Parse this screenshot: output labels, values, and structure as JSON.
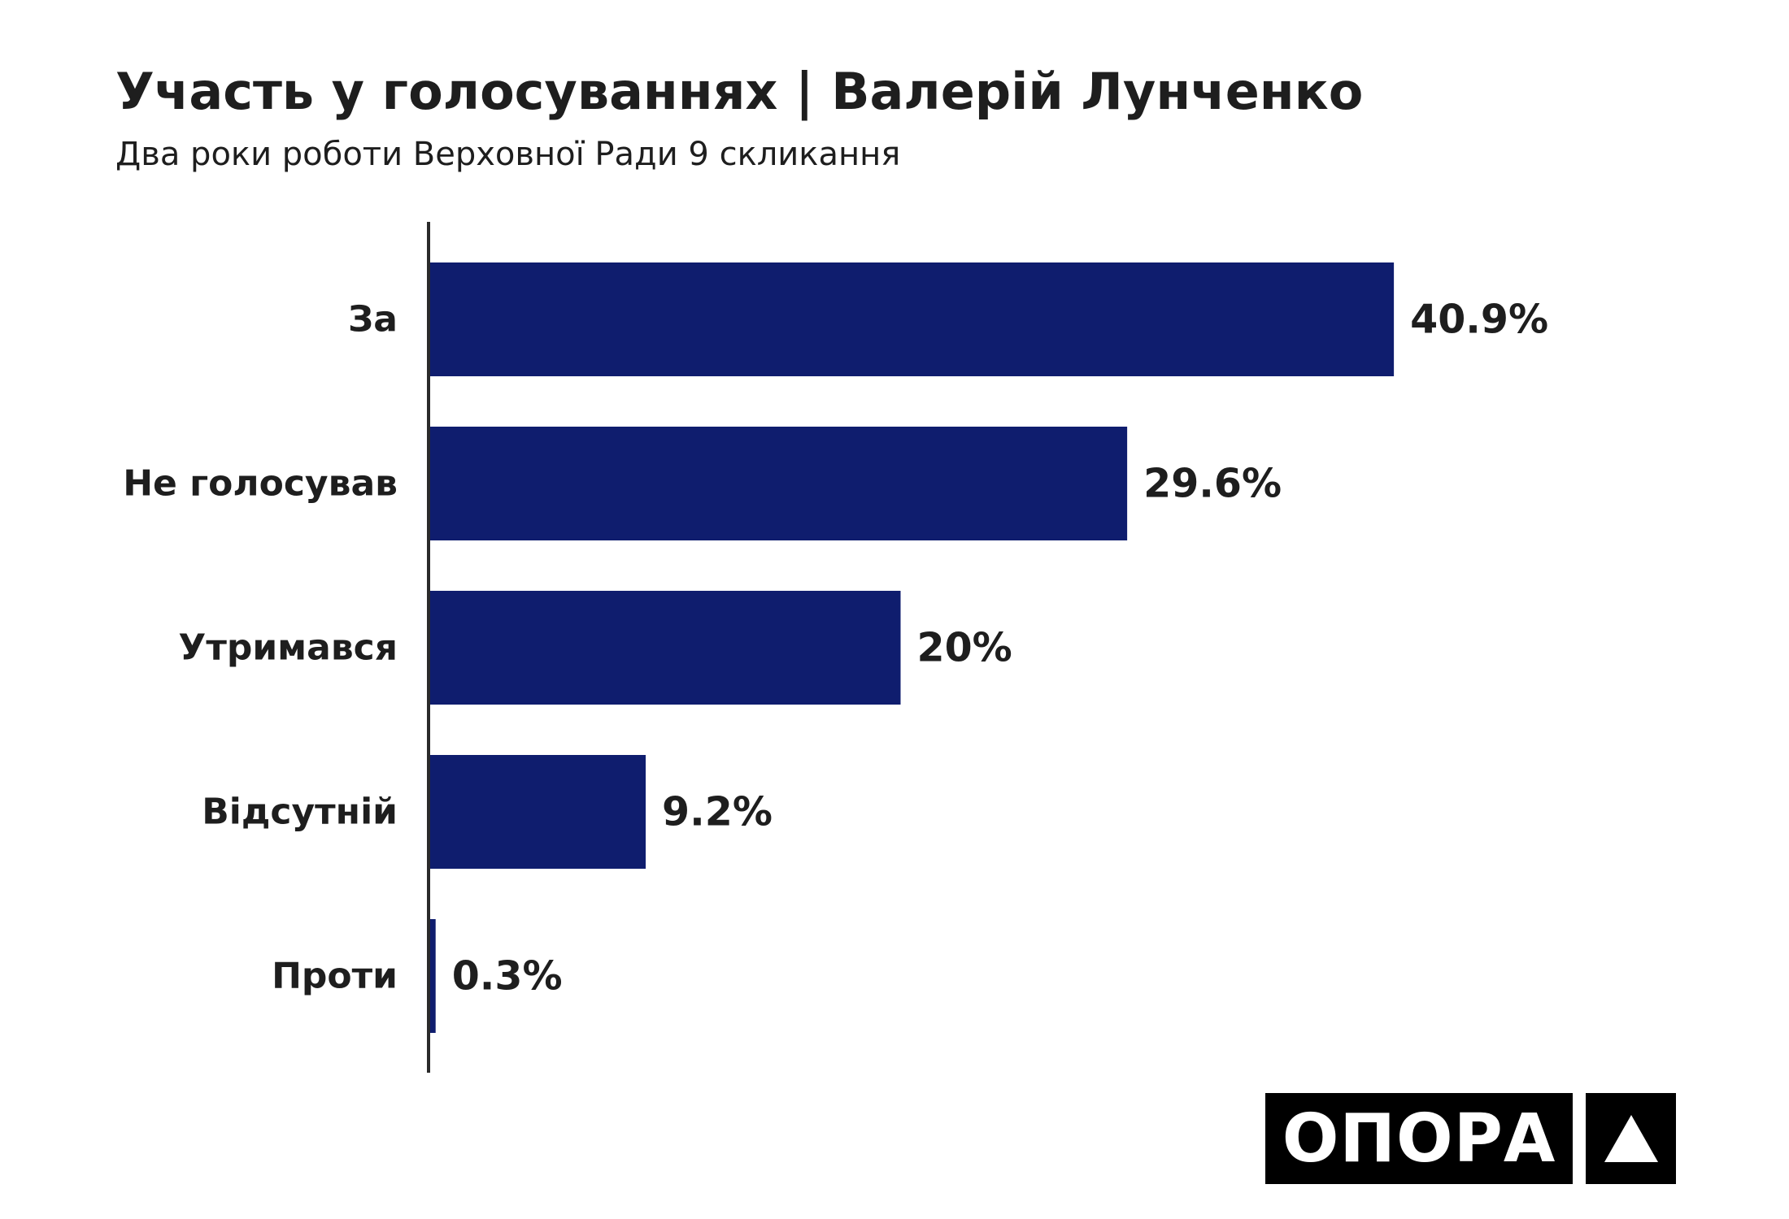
{
  "title": "Участь у голосуваннях | Валерій Лунченко",
  "subtitle": "Два роки роботи Верховної Ради 9 скликання",
  "logo": {
    "text": "ОПОРА",
    "mark_icon": "triangle-icon"
  },
  "colors": {
    "bar": "#0f1d6e",
    "text": "#1e1e1e",
    "axis": "#2b2b2b",
    "logo_bg": "#000000"
  },
  "chart_data": {
    "type": "bar",
    "orientation": "horizontal",
    "categories": [
      "За",
      "Не голосував",
      "Утримався",
      "Відсутній",
      "Проти"
    ],
    "values": [
      40.9,
      29.6,
      20,
      9.2,
      0.3
    ],
    "value_labels": [
      "40.9%",
      "29.6%",
      "20%",
      "9.2%",
      "0.3%"
    ],
    "unit": "%",
    "xlim": [
      0,
      41
    ],
    "grid": false,
    "legend": "none"
  }
}
